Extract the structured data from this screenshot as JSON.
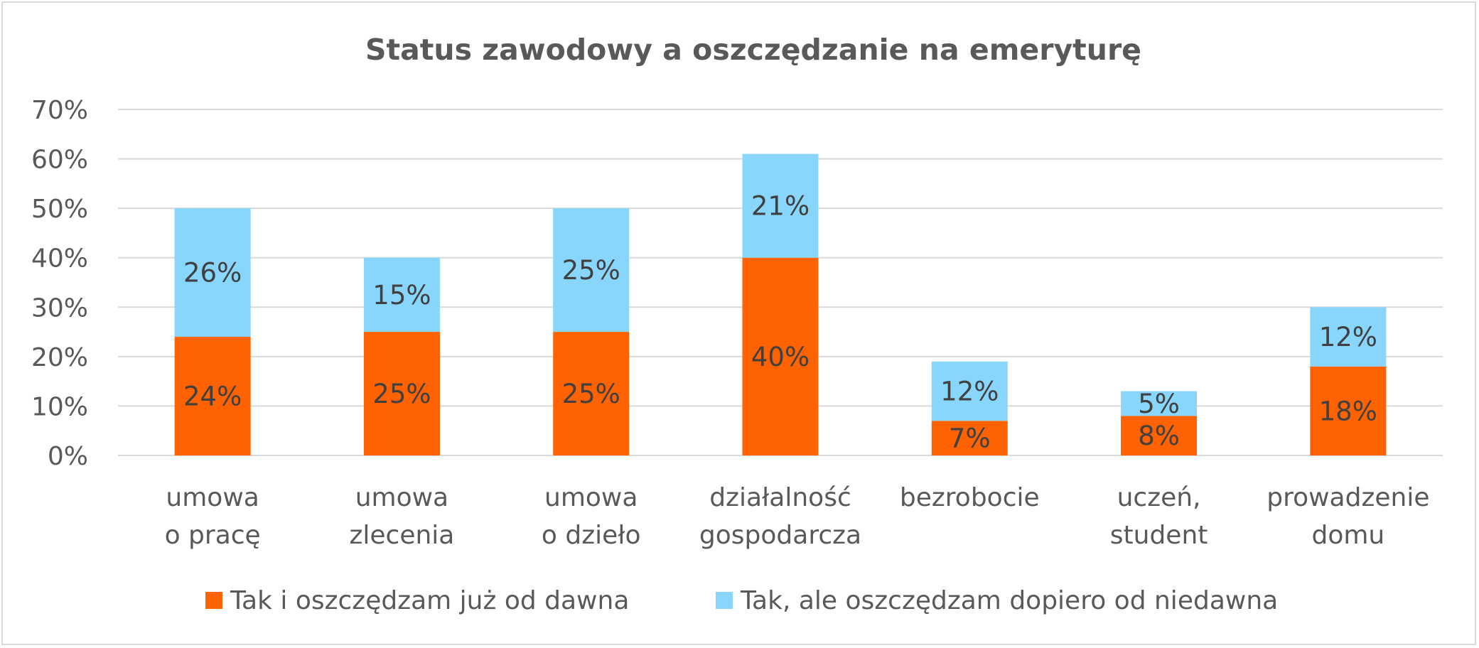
{
  "chart_data": {
    "type": "bar",
    "stacked": true,
    "title": "Status zawodowy a oszczędzanie na emeryturę",
    "categories": [
      [
        "umowa",
        "o pracę"
      ],
      [
        "umowa",
        "zlecenia"
      ],
      [
        "umowa",
        "o dzieło"
      ],
      [
        "działalność",
        "gospodarcza"
      ],
      [
        "bezrobocie"
      ],
      [
        "uczeń,",
        "student"
      ],
      [
        "prowadzenie",
        "domu"
      ]
    ],
    "series": [
      {
        "name": "Tak i oszczędzam już od dawna",
        "color": "#ff6200",
        "values": [
          24,
          25,
          25,
          40,
          7,
          8,
          18
        ],
        "labels": [
          "24%",
          "25%",
          "25%",
          "40%",
          "7%",
          "8%",
          "18%"
        ]
      },
      {
        "name": "Tak, ale oszczędzam dopiero od niedawna",
        "color": "#89d6fd",
        "values": [
          26,
          15,
          25,
          21,
          12,
          5,
          12
        ],
        "labels": [
          "26%",
          "15%",
          "25%",
          "21%",
          "12%",
          "5%",
          "12%"
        ]
      }
    ],
    "ylim": [
      0,
      70
    ],
    "yticks": [
      "0%",
      "10%",
      "20%",
      "30%",
      "40%",
      "50%",
      "60%",
      "70%"
    ],
    "ytick_values": [
      0,
      10,
      20,
      30,
      40,
      50,
      60,
      70
    ],
    "grid": true,
    "legend": "bottom",
    "gridline_color": "#d9d9d9",
    "xlabel": "",
    "ylabel": ""
  }
}
